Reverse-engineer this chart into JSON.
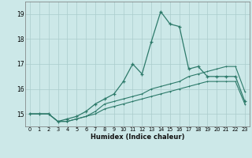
{
  "title": "",
  "xlabel": "Humidex (Indice chaleur)",
  "x_values": [
    0,
    1,
    2,
    3,
    4,
    5,
    6,
    7,
    8,
    9,
    10,
    11,
    12,
    13,
    14,
    15,
    16,
    17,
    18,
    19,
    20,
    21,
    22,
    23
  ],
  "line1_y": [
    15.0,
    15.0,
    15.0,
    14.7,
    14.7,
    14.8,
    14.9,
    15.1,
    15.4,
    15.5,
    15.6,
    15.7,
    15.8,
    16.0,
    16.1,
    16.2,
    16.3,
    16.5,
    16.6,
    16.7,
    16.8,
    16.9,
    16.9,
    15.9
  ],
  "line2_y": [
    15.0,
    15.0,
    15.0,
    14.7,
    14.8,
    14.9,
    15.1,
    15.4,
    15.6,
    15.8,
    16.3,
    17.0,
    16.6,
    17.9,
    19.1,
    18.6,
    18.5,
    16.8,
    16.9,
    16.5,
    16.5,
    16.5,
    16.5,
    15.5
  ],
  "line3_y": [
    15.0,
    15.0,
    15.0,
    14.7,
    14.7,
    14.8,
    14.9,
    15.0,
    15.2,
    15.3,
    15.4,
    15.5,
    15.6,
    15.7,
    15.8,
    15.9,
    16.0,
    16.1,
    16.2,
    16.3,
    16.3,
    16.3,
    16.3,
    15.4
  ],
  "line_color": "#2d7a6a",
  "bg_color": "#cce8e8",
  "grid_color": "#aacccc",
  "ylim": [
    14.5,
    19.5
  ],
  "xlim": [
    -0.5,
    23.5
  ],
  "yticks": [
    15,
    16,
    17,
    18,
    19
  ],
  "xticks": [
    0,
    1,
    2,
    3,
    4,
    5,
    6,
    7,
    8,
    9,
    10,
    11,
    12,
    13,
    14,
    15,
    16,
    17,
    18,
    19,
    20,
    21,
    22,
    23
  ]
}
